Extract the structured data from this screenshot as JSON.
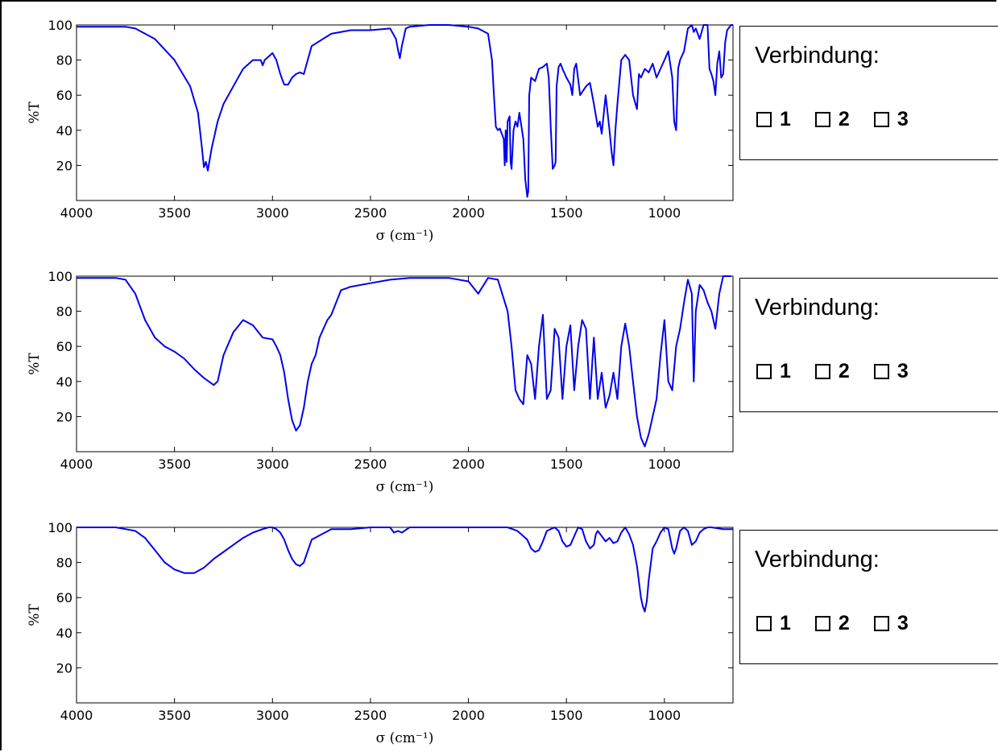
{
  "boxes": [
    {
      "label": "Verbindung:",
      "options": [
        "1",
        "2",
        "3"
      ]
    },
    {
      "label": "Verbindung:",
      "options": [
        "1",
        "2",
        "3"
      ]
    },
    {
      "label": "Verbindung:",
      "options": [
        "1",
        "2",
        "3"
      ]
    }
  ],
  "chart_data": [
    {
      "type": "line",
      "xlabel": "σ (cm⁻¹)",
      "ylabel": "%T",
      "xlim": [
        4000,
        650
      ],
      "ylim": [
        0,
        100
      ],
      "x_ticks": [
        4000,
        3500,
        3000,
        2500,
        2000,
        1500,
        1000
      ],
      "y_ticks": [
        20,
        40,
        60,
        80,
        100
      ],
      "line_color": "#0000ee",
      "series": [
        {
          "x": [
            4000,
            3800,
            3750,
            3700,
            3600,
            3500,
            3420,
            3380,
            3360,
            3350,
            3340,
            3330,
            3310,
            3280,
            3250,
            3200,
            3150,
            3100,
            3060,
            3050,
            3040,
            3000,
            2980,
            2960,
            2940,
            2920,
            2900,
            2880,
            2860,
            2840,
            2800,
            2700,
            2600,
            2500,
            2400,
            2370,
            2360,
            2350,
            2340,
            2330,
            2320,
            2300,
            2200,
            2100,
            2000,
            1950,
            1900,
            1880,
            1870,
            1860,
            1850,
            1840,
            1820,
            1815,
            1810,
            1805,
            1800,
            1790,
            1785,
            1780,
            1770,
            1760,
            1750,
            1740,
            1720,
            1710,
            1700,
            1695,
            1690,
            1680,
            1660,
            1640,
            1620,
            1600,
            1590,
            1580,
            1570,
            1560,
            1555,
            1550,
            1540,
            1530,
            1520,
            1500,
            1480,
            1470,
            1460,
            1450,
            1430,
            1400,
            1380,
            1360,
            1340,
            1330,
            1320,
            1300,
            1280,
            1270,
            1260,
            1250,
            1240,
            1220,
            1200,
            1180,
            1160,
            1140,
            1130,
            1120,
            1100,
            1080,
            1060,
            1040,
            1020,
            1000,
            980,
            960,
            950,
            940,
            930,
            920,
            900,
            880,
            860,
            850,
            840,
            820,
            800,
            780,
            770,
            760,
            750,
            740,
            730,
            720,
            710,
            700,
            690,
            680,
            660,
            650
          ],
          "y": [
            99,
            99,
            99,
            98,
            92,
            80,
            65,
            50,
            30,
            19,
            22,
            17,
            30,
            45,
            55,
            65,
            75,
            80,
            80,
            77,
            80,
            84,
            80,
            72,
            66,
            66,
            70,
            72,
            73,
            72,
            88,
            95,
            97,
            97,
            98,
            92,
            86,
            81,
            88,
            93,
            98,
            99,
            100,
            100,
            99,
            98,
            95,
            80,
            60,
            42,
            40,
            41,
            35,
            20,
            40,
            22,
            45,
            48,
            22,
            18,
            40,
            45,
            42,
            50,
            35,
            12,
            2,
            5,
            60,
            70,
            68,
            75,
            76,
            78,
            70,
            42,
            18,
            20,
            22,
            65,
            76,
            78,
            75,
            70,
            66,
            60,
            75,
            78,
            60,
            65,
            67,
            55,
            42,
            45,
            38,
            60,
            40,
            28,
            20,
            40,
            55,
            80,
            83,
            80,
            60,
            52,
            72,
            70,
            75,
            73,
            78,
            70,
            75,
            80,
            85,
            70,
            45,
            40,
            75,
            80,
            85,
            98,
            100,
            96,
            98,
            92,
            100,
            100,
            75,
            72,
            68,
            60,
            78,
            85,
            70,
            72,
            90,
            97,
            100,
            100
          ]
        }
      ]
    },
    {
      "type": "line",
      "xlabel": "σ (cm⁻¹)",
      "ylabel": "%T",
      "xlim": [
        4000,
        650
      ],
      "ylim": [
        0,
        100
      ],
      "x_ticks": [
        4000,
        3500,
        3000,
        2500,
        2000,
        1500,
        1000
      ],
      "y_ticks": [
        20,
        40,
        60,
        80,
        100
      ],
      "line_color": "#0000ee",
      "series": [
        {
          "x": [
            4000,
            3900,
            3800,
            3750,
            3700,
            3650,
            3600,
            3550,
            3500,
            3450,
            3400,
            3350,
            3300,
            3280,
            3250,
            3200,
            3150,
            3100,
            3050,
            3000,
            2980,
            2960,
            2940,
            2920,
            2900,
            2880,
            2860,
            2840,
            2820,
            2800,
            2780,
            2760,
            2740,
            2720,
            2700,
            2650,
            2600,
            2500,
            2400,
            2300,
            2200,
            2100,
            2000,
            1950,
            1900,
            1850,
            1800,
            1780,
            1760,
            1740,
            1720,
            1700,
            1680,
            1660,
            1640,
            1620,
            1600,
            1580,
            1560,
            1540,
            1520,
            1500,
            1480,
            1460,
            1440,
            1420,
            1400,
            1380,
            1360,
            1340,
            1320,
            1300,
            1280,
            1260,
            1240,
            1220,
            1200,
            1180,
            1160,
            1140,
            1120,
            1100,
            1080,
            1060,
            1040,
            1020,
            1000,
            980,
            960,
            940,
            920,
            900,
            880,
            860,
            850,
            840,
            820,
            800,
            780,
            760,
            740,
            720,
            700,
            680,
            660
          ],
          "y": [
            99,
            99,
            99,
            98,
            90,
            75,
            65,
            60,
            57,
            53,
            47,
            42,
            38,
            40,
            55,
            68,
            75,
            72,
            65,
            64,
            60,
            55,
            45,
            30,
            18,
            12,
            15,
            25,
            40,
            50,
            55,
            65,
            70,
            75,
            78,
            92,
            94,
            96,
            98,
            99,
            99,
            99,
            97,
            90,
            99,
            98,
            80,
            60,
            35,
            30,
            27,
            55,
            50,
            30,
            60,
            78,
            30,
            35,
            70,
            65,
            30,
            60,
            72,
            35,
            60,
            75,
            70,
            30,
            65,
            30,
            45,
            25,
            32,
            45,
            30,
            60,
            73,
            60,
            40,
            20,
            8,
            3,
            10,
            20,
            30,
            55,
            75,
            40,
            35,
            60,
            70,
            85,
            98,
            90,
            40,
            80,
            95,
            92,
            85,
            80,
            70,
            90,
            100,
            100,
            100
          ]
        }
      ]
    },
    {
      "type": "line",
      "xlabel": "σ (cm⁻¹)",
      "ylabel": "%T",
      "xlim": [
        4000,
        650
      ],
      "ylim": [
        0,
        100
      ],
      "x_ticks": [
        4000,
        3500,
        3000,
        2500,
        2000,
        1500,
        1000
      ],
      "y_ticks": [
        20,
        40,
        60,
        80,
        100
      ],
      "line_color": "#0000ee",
      "series": [
        {
          "x": [
            4000,
            3800,
            3750,
            3700,
            3650,
            3600,
            3550,
            3500,
            3450,
            3400,
            3350,
            3300,
            3250,
            3200,
            3150,
            3100,
            3050,
            3020,
            3000,
            2980,
            2960,
            2940,
            2920,
            2900,
            2880,
            2860,
            2840,
            2800,
            2700,
            2600,
            2500,
            2400,
            2380,
            2360,
            2340,
            2300,
            2000,
            1800,
            1750,
            1700,
            1680,
            1660,
            1640,
            1620,
            1600,
            1560,
            1540,
            1520,
            1500,
            1480,
            1460,
            1440,
            1420,
            1400,
            1380,
            1360,
            1350,
            1340,
            1320,
            1300,
            1280,
            1260,
            1240,
            1220,
            1200,
            1180,
            1160,
            1140,
            1120,
            1110,
            1100,
            1090,
            1080,
            1060,
            1040,
            1020,
            1000,
            980,
            960,
            950,
            940,
            920,
            900,
            880,
            860,
            840,
            820,
            800,
            780,
            760,
            700,
            650
          ],
          "y": [
            100,
            100,
            99,
            98,
            94,
            87,
            80,
            76,
            74,
            74,
            77,
            82,
            86,
            90,
            94,
            97,
            99,
            100,
            100,
            99,
            97,
            93,
            87,
            82,
            79,
            78,
            80,
            93,
            99,
            99,
            100,
            100,
            97,
            98,
            97,
            100,
            100,
            100,
            98,
            93,
            88,
            86,
            87,
            92,
            98,
            100,
            98,
            92,
            89,
            90,
            95,
            100,
            99,
            92,
            88,
            90,
            96,
            98,
            95,
            92,
            94,
            91,
            92,
            97,
            100,
            96,
            90,
            78,
            60,
            55,
            52,
            58,
            70,
            88,
            92,
            97,
            100,
            99,
            88,
            85,
            88,
            98,
            100,
            98,
            90,
            92,
            97,
            99,
            100,
            100,
            99,
            99
          ]
        }
      ]
    }
  ]
}
